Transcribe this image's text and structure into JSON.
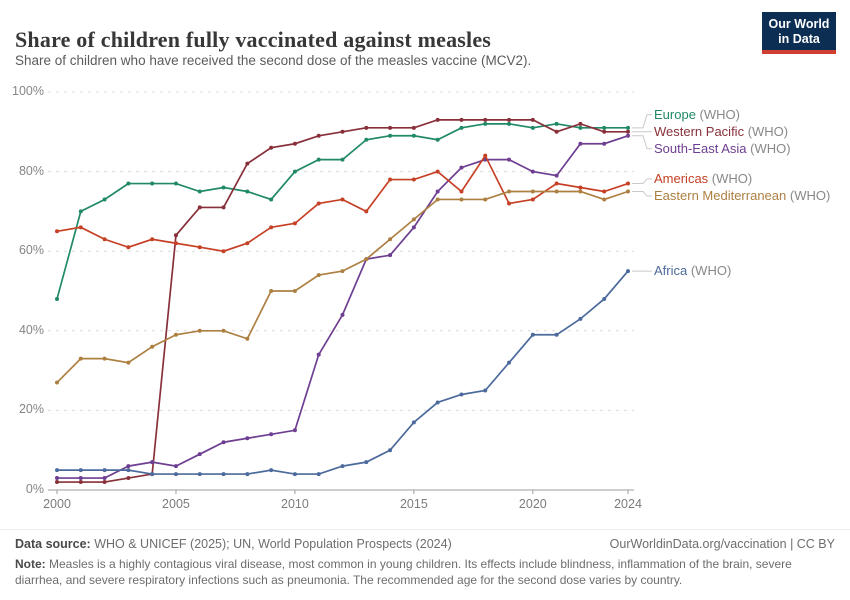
{
  "header": {
    "title": "Share of children fully vaccinated against measles",
    "subtitle": "Share of children who have received the second dose of the measles vaccine (MCV2).",
    "logo": {
      "line1": "Our World",
      "line2": "in Data",
      "bg_color": "#0D2E53",
      "bar_color": "#CF3E31"
    }
  },
  "chart_data": {
    "type": "line",
    "title": "Share of children fully vaccinated against measles",
    "x": [
      2000,
      2001,
      2002,
      2003,
      2004,
      2005,
      2006,
      2007,
      2008,
      2009,
      2010,
      2011,
      2012,
      2013,
      2014,
      2015,
      2016,
      2017,
      2018,
      2019,
      2020,
      2021,
      2022,
      2023,
      2024
    ],
    "series": [
      {
        "label": "Europe",
        "suffix": " (WHO)",
        "color": "#218966",
        "values": [
          48,
          70,
          73,
          77,
          77,
          77,
          75,
          76,
          75,
          73,
          80,
          83,
          83,
          88,
          89,
          89,
          88,
          91,
          92,
          92,
          91,
          92,
          91,
          91,
          91
        ]
      },
      {
        "label": "Western Pacific",
        "suffix": " (WHO)",
        "color": "#883039",
        "values": [
          2,
          2,
          2,
          3,
          4,
          64,
          71,
          71,
          82,
          86,
          87,
          89,
          90,
          91,
          91,
          91,
          93,
          93,
          93,
          93,
          93,
          90,
          92,
          90,
          90
        ]
      },
      {
        "label": "South-East Asia",
        "suffix": " (WHO)",
        "color": "#6D3E91",
        "values": [
          3,
          3,
          3,
          6,
          7,
          6,
          9,
          12,
          13,
          14,
          15,
          34,
          44,
          58,
          59,
          66,
          75,
          81,
          83,
          83,
          80,
          79,
          87,
          87,
          89
        ]
      },
      {
        "label": "Americas",
        "suffix": " (WHO)",
        "color": "#C64026",
        "values": [
          65,
          66,
          63,
          61,
          63,
          62,
          61,
          60,
          62,
          66,
          67,
          72,
          73,
          70,
          78,
          78,
          80,
          75,
          84,
          72,
          73,
          77,
          76,
          75,
          77
        ]
      },
      {
        "label": "Eastern Mediterranean",
        "suffix": " (WHO)",
        "color": "#AD8042",
        "values": [
          27,
          33,
          33,
          32,
          36,
          39,
          40,
          40,
          38,
          50,
          50,
          54,
          55,
          58,
          63,
          68,
          73,
          73,
          73,
          75,
          75,
          75,
          75,
          73,
          75
        ]
      },
      {
        "label": "Africa",
        "suffix": " (WHO)",
        "color": "#4C6A9C",
        "values": [
          5,
          5,
          5,
          5,
          4,
          4,
          4,
          4,
          4,
          5,
          4,
          4,
          6,
          7,
          10,
          17,
          22,
          24,
          25,
          32,
          39,
          39,
          43,
          48,
          55
        ]
      }
    ],
    "ylim": [
      0,
      100
    ],
    "yticks": [
      0,
      20,
      40,
      60,
      80,
      100
    ],
    "ytick_labels": [
      "0%",
      "20%",
      "40%",
      "60%",
      "80%",
      "100%"
    ],
    "xticks": [
      2000,
      2005,
      2010,
      2015,
      2020,
      2024
    ],
    "grid": true,
    "legend_position": "right"
  },
  "footer": {
    "datasource_label": "Data source:",
    "datasource_text": " WHO & UNICEF (2025); UN, World Population Prospects (2024)",
    "attribution": "OurWorldinData.org/vaccination | CC BY",
    "note_label": "Note:",
    "note_text": " Measles is a highly contagious viral disease, most common in young children. Its effects include blindness, inflammation of the brain, severe diarrhea, and severe respiratory infections such as pneumonia. The recommended age for the second dose varies by country."
  }
}
